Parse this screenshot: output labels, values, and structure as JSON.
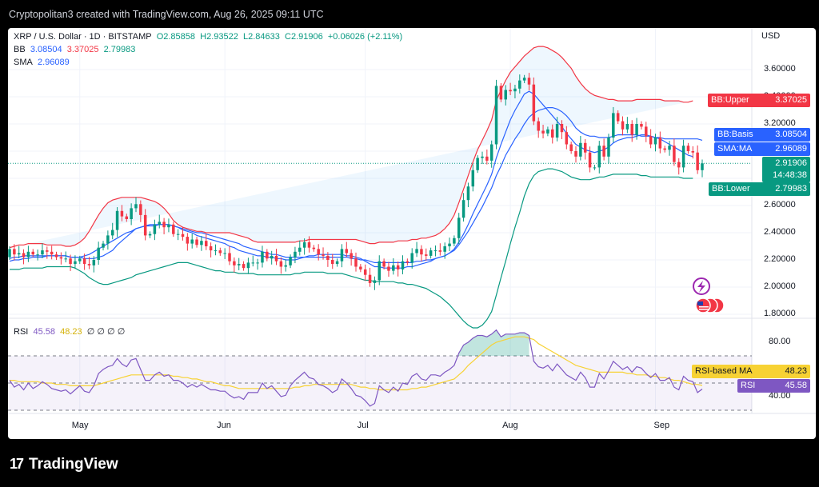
{
  "header": {
    "credit": "Cryptopolitan3 created with TradingView.com, Aug 26, 2025 09:11 UTC"
  },
  "legend": {
    "symbol": "XRP / U.S. Dollar · 1D · BITSTAMP",
    "open": "O2.85858",
    "high": "H2.93522",
    "low": "L2.84633",
    "close": "C2.91906",
    "change": "+0.06026 (+2.11%)",
    "bb_label": "BB",
    "bb_basis": "3.08504",
    "bb_upper": "3.37025",
    "bb_lower": "2.79983",
    "sma_label": "SMA",
    "sma_value": "2.96089",
    "rsi_label": "RSI",
    "rsi_value": "45.58",
    "rsi_ma_value": "48.23",
    "rsi_extra": "∅ ∅ ∅ ∅"
  },
  "axis": {
    "currency": "USD"
  },
  "tags": {
    "bb_upper": {
      "name": "BB:Upper",
      "value": "3.37025",
      "color": "#f23645"
    },
    "bb_basis": {
      "name": "BB:Basis",
      "value": "3.08504",
      "color": "#2962ff"
    },
    "sma_ma": {
      "name": "SMA:MA",
      "value": "2.96089",
      "color": "#2962ff"
    },
    "price": {
      "value": "2.91906",
      "countdown": "14:48:38",
      "color": "#089981"
    },
    "bb_lower": {
      "name": "BB:Lower",
      "value": "2.79983",
      "color": "#089981"
    },
    "rsi_ma": {
      "name": "RSI-based MA",
      "value": "48.23",
      "color": "#f7d234"
    },
    "rsi": {
      "name": "RSI",
      "value": "45.58",
      "color": "#7e57c2"
    }
  },
  "brand": {
    "name": "TradingView"
  },
  "chart_data": {
    "type": "candlestick",
    "x_ticks": [
      "May",
      "Jun",
      "Jul",
      "Aug",
      "Sep"
    ],
    "y_ticks": [
      "3.60000",
      "3.40000",
      "3.20000",
      "3.00000",
      "2.80000",
      "2.60000",
      "2.40000",
      "2.20000",
      "2.00000",
      "1.80000"
    ],
    "ylim": [
      1.8,
      3.8
    ],
    "rsi_ticks": [
      "80.00",
      "60.00",
      "40.00"
    ],
    "rsi_ylim": [
      20,
      90
    ],
    "rsi_bands": [
      30,
      50,
      70
    ],
    "colors": {
      "up": "#089981",
      "down": "#f23645",
      "basis": "#2962ff",
      "upper": "#f23645",
      "lower": "#089981",
      "rsi": "#7e57c2",
      "rsi_ma": "#f7d234"
    },
    "close": [
      2.28,
      2.24,
      2.25,
      2.22,
      2.26,
      2.24,
      2.24,
      2.27,
      2.26,
      2.24,
      2.22,
      2.21,
      2.21,
      2.17,
      2.19,
      2.21,
      2.17,
      2.16,
      2.2,
      2.29,
      2.32,
      2.38,
      2.42,
      2.56,
      2.52,
      2.5,
      2.58,
      2.61,
      2.53,
      2.38,
      2.39,
      2.46,
      2.48,
      2.44,
      2.46,
      2.39,
      2.39,
      2.37,
      2.32,
      2.35,
      2.31,
      2.34,
      2.3,
      2.27,
      2.27,
      2.25,
      2.25,
      2.19,
      2.16,
      2.17,
      2.14,
      2.18,
      2.18,
      2.18,
      2.26,
      2.21,
      2.23,
      2.19,
      2.15,
      2.16,
      2.22,
      2.26,
      2.29,
      2.33,
      2.29,
      2.28,
      2.24,
      2.23,
      2.2,
      2.17,
      2.19,
      2.28,
      2.25,
      2.21,
      2.15,
      2.13,
      2.09,
      2.03,
      2.05,
      2.19,
      2.15,
      2.12,
      2.16,
      2.13,
      2.19,
      2.18,
      2.25,
      2.28,
      2.24,
      2.23,
      2.27,
      2.27,
      2.26,
      2.3,
      2.32,
      2.36,
      2.51,
      2.64,
      2.74,
      2.86,
      2.95,
      2.96,
      2.93,
      3.05,
      3.48,
      3.38,
      3.45,
      3.44,
      3.46,
      3.52,
      3.54,
      3.49,
      3.22,
      3.15,
      3.13,
      3.16,
      3.1,
      3.2,
      3.14,
      3.05,
      3.0,
      2.96,
      3.06,
      2.99,
      2.88,
      2.88,
      3.04,
      2.96,
      3.1,
      3.28,
      3.22,
      3.16,
      3.2,
      3.12,
      3.2,
      3.18,
      3.11,
      3.05,
      3.1,
      3.02,
      3.01,
      3.04,
      2.92,
      2.88,
      3.04,
      3.0,
      2.99,
      2.86,
      2.91
    ],
    "open": [
      2.22,
      2.28,
      2.24,
      2.25,
      2.22,
      2.26,
      2.24,
      2.24,
      2.27,
      2.26,
      2.24,
      2.22,
      2.21,
      2.21,
      2.17,
      2.19,
      2.21,
      2.17,
      2.16,
      2.2,
      2.29,
      2.32,
      2.38,
      2.42,
      2.56,
      2.52,
      2.5,
      2.58,
      2.61,
      2.53,
      2.38,
      2.39,
      2.46,
      2.48,
      2.44,
      2.46,
      2.39,
      2.39,
      2.37,
      2.32,
      2.35,
      2.31,
      2.34,
      2.3,
      2.27,
      2.27,
      2.25,
      2.25,
      2.19,
      2.16,
      2.17,
      2.14,
      2.18,
      2.18,
      2.18,
      2.26,
      2.21,
      2.23,
      2.19,
      2.15,
      2.16,
      2.22,
      2.26,
      2.29,
      2.33,
      2.29,
      2.28,
      2.24,
      2.23,
      2.2,
      2.17,
      2.19,
      2.28,
      2.25,
      2.21,
      2.15,
      2.13,
      2.09,
      2.03,
      2.05,
      2.19,
      2.15,
      2.12,
      2.16,
      2.13,
      2.19,
      2.18,
      2.25,
      2.28,
      2.24,
      2.23,
      2.27,
      2.27,
      2.26,
      2.3,
      2.32,
      2.36,
      2.51,
      2.64,
      2.74,
      2.86,
      2.95,
      2.96,
      2.93,
      3.05,
      3.48,
      3.38,
      3.45,
      3.44,
      3.46,
      3.52,
      3.54,
      3.49,
      3.22,
      3.15,
      3.13,
      3.16,
      3.1,
      3.2,
      3.14,
      3.05,
      3.0,
      2.96,
      3.06,
      2.99,
      2.88,
      2.88,
      3.04,
      2.96,
      3.1,
      3.28,
      3.22,
      3.16,
      3.2,
      3.12,
      3.2,
      3.18,
      3.11,
      3.05,
      3.1,
      3.02,
      3.01,
      3.04,
      2.92,
      2.88,
      3.04,
      3.0,
      2.99,
      2.86
    ],
    "bb_upper": [
      2.29,
      2.3,
      2.31,
      2.31,
      2.32,
      2.32,
      2.32,
      2.32,
      2.31,
      2.31,
      2.31,
      2.31,
      2.3,
      2.3,
      2.31,
      2.33,
      2.36,
      2.41,
      2.47,
      2.53,
      2.58,
      2.62,
      2.64,
      2.65,
      2.66,
      2.66,
      2.66,
      2.66,
      2.66,
      2.65,
      2.64,
      2.63,
      2.61,
      2.58,
      2.54,
      2.49,
      2.46,
      2.44,
      2.43,
      2.42,
      2.41,
      2.41,
      2.4,
      2.4,
      2.4,
      2.4,
      2.4,
      2.4,
      2.39,
      2.38,
      2.37,
      2.36,
      2.34,
      2.33,
      2.33,
      2.33,
      2.33,
      2.33,
      2.33,
      2.33,
      2.33,
      2.33,
      2.34,
      2.34,
      2.35,
      2.35,
      2.35,
      2.35,
      2.35,
      2.35,
      2.35,
      2.35,
      2.35,
      2.35,
      2.35,
      2.34,
      2.33,
      2.32,
      2.32,
      2.33,
      2.33,
      2.33,
      2.33,
      2.34,
      2.34,
      2.34,
      2.35,
      2.35,
      2.36,
      2.36,
      2.37,
      2.38,
      2.4,
      2.43,
      2.47,
      2.53,
      2.62,
      2.72,
      2.82,
      2.92,
      3.01,
      3.08,
      3.15,
      3.23,
      3.37,
      3.45,
      3.52,
      3.58,
      3.62,
      3.66,
      3.7,
      3.73,
      3.76,
      3.77,
      3.77,
      3.76,
      3.74,
      3.72,
      3.69,
      3.65,
      3.61,
      3.55,
      3.5,
      3.46,
      3.43,
      3.41,
      3.4,
      3.39,
      3.38,
      3.38,
      3.37,
      3.37,
      3.37,
      3.37,
      3.38,
      3.38,
      3.38,
      3.38,
      3.38,
      3.38,
      3.37,
      3.37,
      3.37,
      3.37,
      3.36,
      3.36,
      3.37
    ],
    "bb_basis": [
      2.21,
      2.22,
      2.22,
      2.23,
      2.23,
      2.23,
      2.23,
      2.23,
      2.23,
      2.23,
      2.23,
      2.23,
      2.23,
      2.22,
      2.22,
      2.22,
      2.23,
      2.24,
      2.26,
      2.28,
      2.3,
      2.32,
      2.34,
      2.36,
      2.38,
      2.4,
      2.41,
      2.43,
      2.44,
      2.45,
      2.46,
      2.46,
      2.46,
      2.46,
      2.46,
      2.45,
      2.44,
      2.43,
      2.42,
      2.41,
      2.4,
      2.4,
      2.39,
      2.38,
      2.37,
      2.36,
      2.35,
      2.34,
      2.33,
      2.32,
      2.3,
      2.29,
      2.28,
      2.27,
      2.26,
      2.25,
      2.24,
      2.24,
      2.23,
      2.22,
      2.22,
      2.22,
      2.22,
      2.22,
      2.22,
      2.22,
      2.22,
      2.22,
      2.22,
      2.22,
      2.22,
      2.22,
      2.22,
      2.21,
      2.21,
      2.2,
      2.2,
      2.19,
      2.18,
      2.18,
      2.18,
      2.18,
      2.18,
      2.18,
      2.18,
      2.18,
      2.18,
      2.19,
      2.19,
      2.2,
      2.2,
      2.21,
      2.22,
      2.23,
      2.25,
      2.27,
      2.31,
      2.36,
      2.41,
      2.47,
      2.53,
      2.59,
      2.66,
      2.73,
      2.82,
      2.89,
      2.97,
      3.03,
      3.09,
      3.14,
      3.2,
      3.25,
      3.28,
      3.3,
      3.31,
      3.32,
      3.32,
      3.31,
      3.29,
      3.26,
      3.22,
      3.17,
      3.14,
      3.12,
      3.11,
      3.11,
      3.1,
      3.1,
      3.1,
      3.11,
      3.12,
      3.12,
      3.12,
      3.12,
      3.12,
      3.11,
      3.11,
      3.11,
      3.1,
      3.1,
      3.09,
      3.09,
      3.09,
      3.09,
      3.09,
      3.09,
      3.09,
      3.09,
      3.08
    ],
    "bb_lower": [
      2.13,
      2.13,
      2.13,
      2.14,
      2.14,
      2.14,
      2.14,
      2.14,
      2.15,
      2.15,
      2.15,
      2.15,
      2.15,
      2.15,
      2.14,
      2.12,
      2.1,
      2.07,
      2.05,
      2.03,
      2.02,
      2.02,
      2.03,
      2.04,
      2.05,
      2.06,
      2.07,
      2.09,
      2.1,
      2.11,
      2.12,
      2.13,
      2.14,
      2.15,
      2.16,
      2.17,
      2.18,
      2.18,
      2.18,
      2.17,
      2.16,
      2.15,
      2.14,
      2.13,
      2.12,
      2.12,
      2.11,
      2.11,
      2.11,
      2.1,
      2.1,
      2.1,
      2.1,
      2.09,
      2.09,
      2.09,
      2.09,
      2.09,
      2.09,
      2.09,
      2.09,
      2.1,
      2.1,
      2.11,
      2.11,
      2.11,
      2.11,
      2.11,
      2.1,
      2.1,
      2.1,
      2.1,
      2.09,
      2.08,
      2.07,
      2.06,
      2.05,
      2.05,
      2.04,
      2.04,
      2.04,
      2.04,
      2.04,
      2.03,
      2.03,
      2.02,
      2.02,
      2.01,
      2.0,
      1.99,
      1.97,
      1.95,
      1.93,
      1.9,
      1.87,
      1.83,
      1.79,
      1.75,
      1.72,
      1.7,
      1.7,
      1.72,
      1.76,
      1.82,
      1.94,
      2.07,
      2.19,
      2.32,
      2.44,
      2.55,
      2.67,
      2.76,
      2.82,
      2.85,
      2.86,
      2.87,
      2.87,
      2.86,
      2.85,
      2.83,
      2.81,
      2.8,
      2.79,
      2.79,
      2.79,
      2.8,
      2.81,
      2.81,
      2.82,
      2.83,
      2.83,
      2.83,
      2.83,
      2.83,
      2.83,
      2.82,
      2.82,
      2.81,
      2.81,
      2.81,
      2.81,
      2.81,
      2.81,
      2.81,
      2.8,
      2.8,
      2.8
    ],
    "sma": [
      2.19,
      2.2,
      2.2,
      2.21,
      2.21,
      2.22,
      2.22,
      2.22,
      2.23,
      2.23,
      2.23,
      2.23,
      2.23,
      2.22,
      2.22,
      2.22,
      2.21,
      2.21,
      2.21,
      2.22,
      2.23,
      2.25,
      2.27,
      2.31,
      2.34,
      2.37,
      2.4,
      2.43,
      2.44,
      2.45,
      2.45,
      2.45,
      2.46,
      2.46,
      2.46,
      2.45,
      2.44,
      2.42,
      2.41,
      2.4,
      2.38,
      2.37,
      2.36,
      2.35,
      2.34,
      2.33,
      2.32,
      2.3,
      2.29,
      2.27,
      2.26,
      2.25,
      2.24,
      2.23,
      2.23,
      2.22,
      2.22,
      2.21,
      2.21,
      2.2,
      2.2,
      2.2,
      2.21,
      2.22,
      2.23,
      2.23,
      2.24,
      2.24,
      2.24,
      2.24,
      2.24,
      2.24,
      2.23,
      2.23,
      2.22,
      2.21,
      2.19,
      2.17,
      2.15,
      2.15,
      2.14,
      2.14,
      2.14,
      2.14,
      2.14,
      2.15,
      2.15,
      2.16,
      2.17,
      2.18,
      2.19,
      2.21,
      2.22,
      2.23,
      2.25,
      2.28,
      2.33,
      2.39,
      2.46,
      2.54,
      2.61,
      2.68,
      2.75,
      2.83,
      2.95,
      3.05,
      3.14,
      3.23,
      3.3,
      3.36,
      3.42,
      3.44,
      3.42,
      3.38,
      3.34,
      3.3,
      3.26,
      3.22,
      3.18,
      3.13,
      3.09,
      3.05,
      3.03,
      3.01,
      3.0,
      2.99,
      3.0,
      3.01,
      3.03,
      3.06,
      3.08,
      3.09,
      3.1,
      3.1,
      3.11,
      3.12,
      3.12,
      3.11,
      3.1,
      3.09,
      3.07,
      3.05,
      3.03,
      3.01,
      2.99,
      2.97,
      2.96
    ],
    "rsi": [
      52,
      47,
      49,
      45,
      50,
      46,
      48,
      51,
      49,
      46,
      45,
      44,
      45,
      42,
      45,
      48,
      44,
      43,
      48,
      57,
      60,
      62,
      63,
      68,
      64,
      62,
      67,
      68,
      60,
      52,
      52,
      56,
      58,
      55,
      56,
      52,
      52,
      50,
      47,
      49,
      47,
      49,
      47,
      45,
      45,
      44,
      44,
      41,
      39,
      40,
      38,
      43,
      43,
      43,
      50,
      46,
      48,
      44,
      40,
      41,
      48,
      52,
      55,
      58,
      54,
      53,
      49,
      48,
      46,
      43,
      45,
      53,
      50,
      46,
      41,
      40,
      37,
      33,
      35,
      48,
      45,
      43,
      47,
      44,
      50,
      49,
      55,
      57,
      53,
      52,
      56,
      56,
      55,
      58,
      60,
      63,
      72,
      78,
      80,
      83,
      85,
      85,
      84,
      86,
      89,
      84,
      86,
      86,
      86,
      87,
      87,
      85,
      66,
      62,
      61,
      63,
      59,
      64,
      60,
      56,
      54,
      52,
      58,
      54,
      47,
      47,
      57,
      53,
      59,
      66,
      63,
      60,
      62,
      58,
      62,
      61,
      57,
      54,
      57,
      52,
      52,
      54,
      47,
      45,
      55,
      52,
      51,
      43,
      45.58
    ],
    "rsi_ma": [
      52,
      52,
      51,
      51,
      51,
      51,
      51,
      50,
      50,
      50,
      49,
      49,
      49,
      48,
      48,
      48,
      48,
      48,
      48,
      49,
      50,
      51,
      52,
      53,
      54,
      55,
      56,
      56,
      56,
      56,
      56,
      56,
      56,
      56,
      56,
      55,
      55,
      54,
      54,
      53,
      53,
      52,
      51,
      51,
      50,
      49,
      48,
      48,
      47,
      46,
      46,
      46,
      46,
      46,
      46,
      46,
      46,
      46,
      46,
      46,
      46,
      47,
      47,
      48,
      48,
      49,
      49,
      49,
      49,
      49,
      49,
      49,
      49,
      49,
      48,
      47,
      47,
      46,
      46,
      45,
      45,
      45,
      45,
      45,
      45,
      45,
      46,
      46,
      47,
      47,
      48,
      49,
      50,
      51,
      52,
      53,
      56,
      59,
      63,
      66,
      69,
      72,
      75,
      78,
      80,
      81,
      82,
      83,
      84,
      84,
      84,
      83,
      82,
      79,
      77,
      75,
      73,
      71,
      69,
      67,
      65,
      63,
      62,
      61,
      60,
      59,
      58,
      58,
      58,
      58,
      58,
      58,
      57,
      57,
      56,
      56,
      56,
      55,
      55,
      54,
      54,
      53,
      52,
      52,
      51,
      50,
      49,
      49,
      48.23
    ]
  }
}
